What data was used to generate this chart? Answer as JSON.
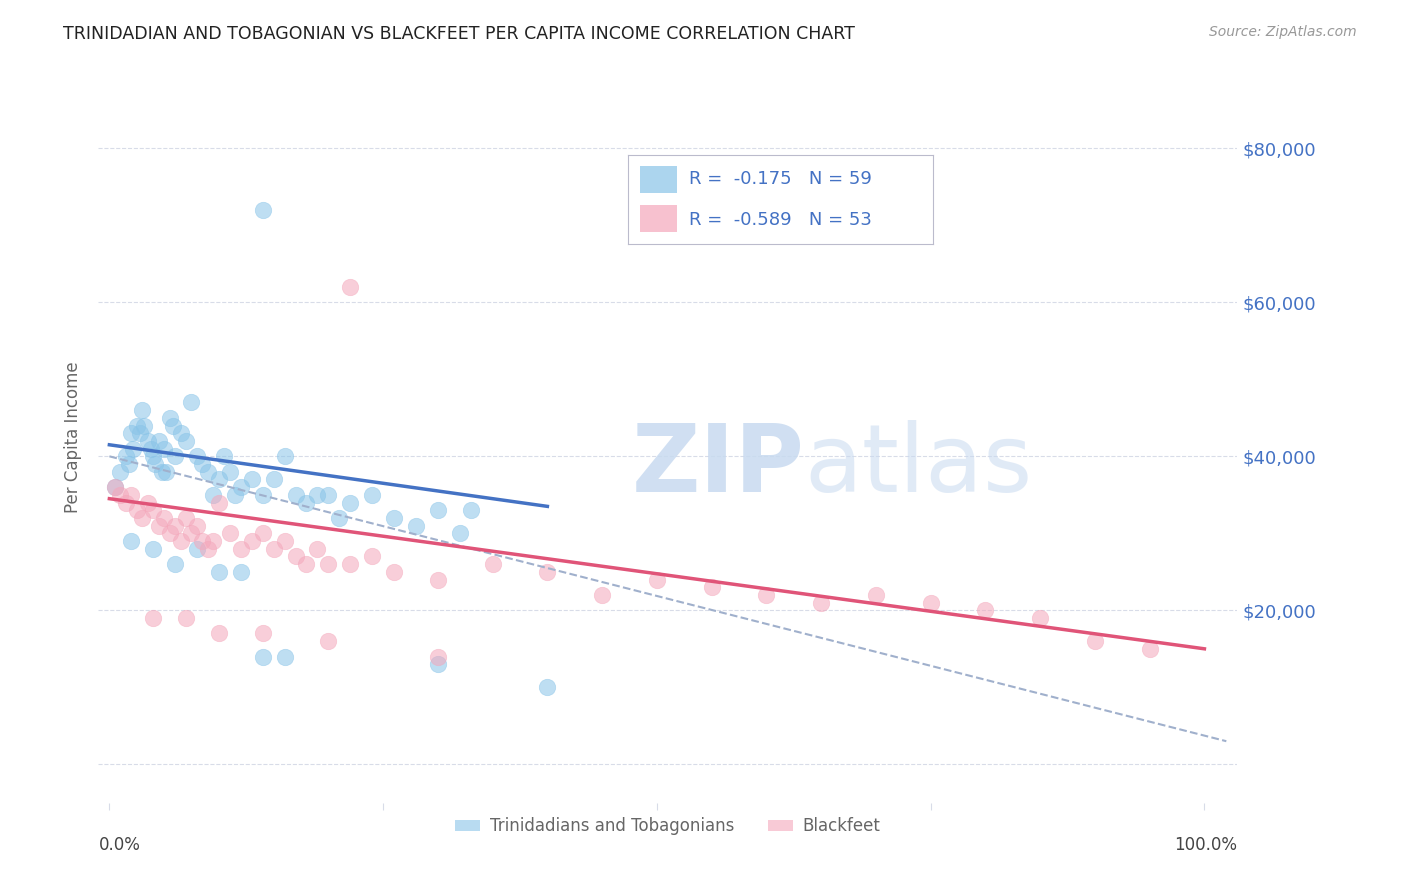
{
  "title": "TRINIDADIAN AND TOBAGONIAN VS BLACKFEET PER CAPITA INCOME CORRELATION CHART",
  "source": "Source: ZipAtlas.com",
  "ylabel": "Per Capita Income",
  "legend_label1": "Trinidadians and Tobagonians",
  "legend_label2": "Blackfeet",
  "r1": "-0.175",
  "n1": "59",
  "r2": "-0.589",
  "n2": "53",
  "ytick_vals": [
    0,
    20000,
    40000,
    60000,
    80000
  ],
  "ylim": [
    -5000,
    90000
  ],
  "xlim": [
    -0.01,
    1.03
  ],
  "background_color": "#ffffff",
  "blue_color": "#89c4e8",
  "blue_line_color": "#4472c4",
  "pink_color": "#f4a7bb",
  "pink_line_color": "#e05478",
  "dash_color": "#a0b0cc",
  "grid_color": "#d8dce8",
  "title_color": "#222222",
  "axis_label_color": "#666666",
  "tick_label_color": "#4472c4",
  "source_color": "#999999",
  "blue_scatter_x": [
    0.005,
    0.01,
    0.015,
    0.018,
    0.02,
    0.022,
    0.025,
    0.028,
    0.03,
    0.032,
    0.035,
    0.038,
    0.04,
    0.042,
    0.045,
    0.048,
    0.05,
    0.052,
    0.055,
    0.058,
    0.06,
    0.065,
    0.07,
    0.075,
    0.08,
    0.085,
    0.09,
    0.095,
    0.1,
    0.105,
    0.11,
    0.115,
    0.12,
    0.13,
    0.14,
    0.15,
    0.16,
    0.17,
    0.18,
    0.19,
    0.2,
    0.21,
    0.22,
    0.24,
    0.26,
    0.28,
    0.3,
    0.32,
    0.33,
    0.02,
    0.04,
    0.06,
    0.08,
    0.1,
    0.12,
    0.14,
    0.16,
    0.3,
    0.4
  ],
  "blue_scatter_y": [
    36000,
    38000,
    40000,
    39000,
    43000,
    41000,
    44000,
    43000,
    46000,
    44000,
    42000,
    41000,
    40000,
    39000,
    42000,
    38000,
    41000,
    38000,
    45000,
    44000,
    40000,
    43000,
    42000,
    47000,
    40000,
    39000,
    38000,
    35000,
    37000,
    40000,
    38000,
    35000,
    36000,
    37000,
    35000,
    37000,
    40000,
    35000,
    34000,
    35000,
    35000,
    32000,
    34000,
    35000,
    32000,
    31000,
    33000,
    30000,
    33000,
    29000,
    28000,
    26000,
    28000,
    25000,
    25000,
    14000,
    14000,
    13000,
    10000
  ],
  "blue_outlier_x": [
    0.14
  ],
  "blue_outlier_y": [
    72000
  ],
  "pink_scatter_x": [
    0.005,
    0.01,
    0.015,
    0.02,
    0.025,
    0.03,
    0.035,
    0.04,
    0.045,
    0.05,
    0.055,
    0.06,
    0.065,
    0.07,
    0.075,
    0.08,
    0.085,
    0.09,
    0.095,
    0.1,
    0.11,
    0.12,
    0.13,
    0.14,
    0.15,
    0.16,
    0.17,
    0.18,
    0.19,
    0.2,
    0.22,
    0.24,
    0.26,
    0.3,
    0.35,
    0.4,
    0.45,
    0.5,
    0.55,
    0.6,
    0.65,
    0.7,
    0.75,
    0.8,
    0.85,
    0.9,
    0.95,
    0.04,
    0.07,
    0.1,
    0.14,
    0.2,
    0.3
  ],
  "pink_scatter_y": [
    36000,
    35000,
    34000,
    35000,
    33000,
    32000,
    34000,
    33000,
    31000,
    32000,
    30000,
    31000,
    29000,
    32000,
    30000,
    31000,
    29000,
    28000,
    29000,
    34000,
    30000,
    28000,
    29000,
    30000,
    28000,
    29000,
    27000,
    26000,
    28000,
    26000,
    26000,
    27000,
    25000,
    24000,
    26000,
    25000,
    22000,
    24000,
    23000,
    22000,
    21000,
    22000,
    21000,
    20000,
    19000,
    16000,
    15000,
    19000,
    19000,
    17000,
    17000,
    16000,
    14000
  ],
  "pink_outlier_x": [
    0.22
  ],
  "pink_outlier_y": [
    62000
  ],
  "blue_trend_x": [
    0.0,
    0.4
  ],
  "blue_trend_y": [
    41500,
    33500
  ],
  "pink_trend_x": [
    0.0,
    1.0
  ],
  "pink_trend_y": [
    34500,
    15000
  ],
  "dash_trend_x": [
    0.0,
    1.02
  ],
  "dash_trend_y": [
    40000,
    3000
  ]
}
